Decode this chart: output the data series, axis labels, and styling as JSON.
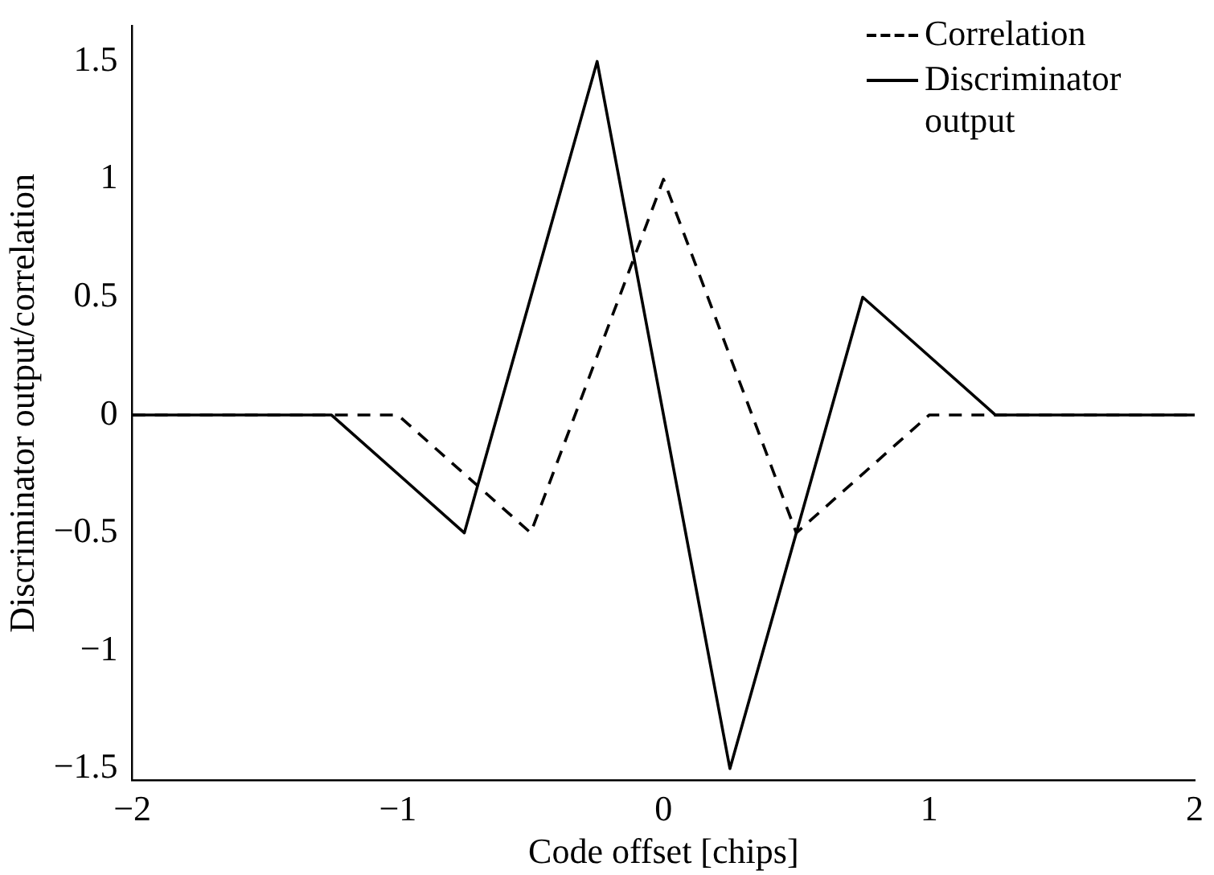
{
  "chart_data": {
    "type": "line",
    "xlabel": "Code offset [chips]",
    "ylabel": "Discriminator output/correlation",
    "xlim": [
      -2,
      2
    ],
    "ylim": [
      -1.55,
      1.65
    ],
    "xticks": [
      -2,
      -1,
      0,
      1,
      2
    ],
    "yticks": [
      -1.5,
      -1,
      -0.5,
      0,
      0.5,
      1,
      1.5
    ],
    "grid": false,
    "legend": "top right",
    "marker": "none",
    "series": [
      {
        "name": "Correlation",
        "color": "#000000",
        "line_style": "dashed",
        "x": [
          -2,
          -1,
          -0.5,
          0,
          0.5,
          1,
          2
        ],
        "values": [
          0,
          0,
          -0.5,
          1,
          -0.5,
          0,
          0
        ]
      },
      {
        "name": "Discriminator output",
        "color": "#000000",
        "line_style": "solid",
        "x": [
          -2,
          -1.25,
          -0.75,
          -0.25,
          0.25,
          0.75,
          1.25,
          2
        ],
        "values": [
          0,
          0,
          -0.5,
          1.5,
          -1.5,
          0.5,
          0,
          0
        ]
      }
    ]
  }
}
